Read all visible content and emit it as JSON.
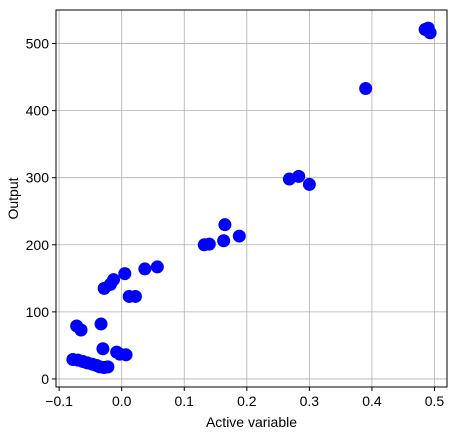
{
  "chart_data": {
    "type": "scatter",
    "title": "",
    "xlabel": "Active variable",
    "ylabel": "Output",
    "xlim": [
      -0.105,
      0.52
    ],
    "ylim": [
      -12,
      550
    ],
    "xticks": [
      -0.1,
      0.0,
      0.1,
      0.2,
      0.3,
      0.4,
      0.5
    ],
    "xtick_labels": [
      "−0.1",
      "0.0",
      "0.1",
      "0.2",
      "0.3",
      "0.4",
      "0.5"
    ],
    "yticks": [
      0,
      100,
      200,
      300,
      400,
      500
    ],
    "ytick_labels": [
      "0",
      "100",
      "200",
      "300",
      "400",
      "500"
    ],
    "grid": true,
    "legend": "none",
    "marker_color": "#0000ff",
    "series": [
      {
        "points": [
          {
            "x": 0.485,
            "y": 521
          },
          {
            "x": 0.49,
            "y": 523
          },
          {
            "x": 0.493,
            "y": 516
          },
          {
            "x": 0.39,
            "y": 433
          },
          {
            "x": 0.268,
            "y": 298
          },
          {
            "x": 0.283,
            "y": 302
          },
          {
            "x": 0.3,
            "y": 290
          },
          {
            "x": 0.165,
            "y": 230
          },
          {
            "x": 0.163,
            "y": 206
          },
          {
            "x": 0.188,
            "y": 213
          },
          {
            "x": 0.132,
            "y": 200
          },
          {
            "x": 0.14,
            "y": 201
          },
          {
            "x": 0.057,
            "y": 167
          },
          {
            "x": 0.037,
            "y": 164
          },
          {
            "x": 0.012,
            "y": 123
          },
          {
            "x": 0.022,
            "y": 123
          },
          {
            "x": 0.005,
            "y": 157
          },
          {
            "x": -0.013,
            "y": 148
          },
          {
            "x": -0.018,
            "y": 141
          },
          {
            "x": -0.028,
            "y": 135
          },
          {
            "x": -0.072,
            "y": 79
          },
          {
            "x": -0.065,
            "y": 73
          },
          {
            "x": -0.033,
            "y": 82
          },
          {
            "x": -0.03,
            "y": 45
          },
          {
            "x": -0.008,
            "y": 40
          },
          {
            "x": -0.003,
            "y": 37
          },
          {
            "x": 0.007,
            "y": 36
          },
          {
            "x": -0.078,
            "y": 29
          },
          {
            "x": -0.07,
            "y": 28
          },
          {
            "x": -0.062,
            "y": 26
          },
          {
            "x": -0.055,
            "y": 24
          },
          {
            "x": -0.047,
            "y": 22
          },
          {
            "x": -0.04,
            "y": 20
          },
          {
            "x": -0.035,
            "y": 18
          },
          {
            "x": -0.028,
            "y": 17
          },
          {
            "x": -0.022,
            "y": 18
          }
        ]
      }
    ]
  }
}
